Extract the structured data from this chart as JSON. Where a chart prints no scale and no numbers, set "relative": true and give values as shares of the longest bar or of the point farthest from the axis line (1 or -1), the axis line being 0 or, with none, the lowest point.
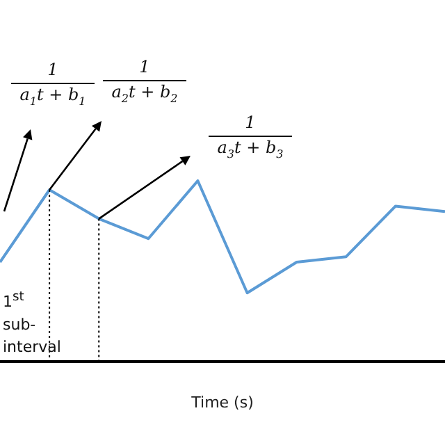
{
  "chart_data": {
    "type": "line",
    "relative": true,
    "xlabel": "Time (s)",
    "categories": [
      null,
      null,
      null,
      null,
      null,
      null,
      null,
      null,
      null,
      null
    ],
    "series": [
      {
        "color": "#5b9bd5",
        "values": [
          0.55,
          0.95,
          0.79,
          0.68,
          1,
          0.38,
          0.55,
          0.58,
          0.86,
          0.83
        ]
      }
    ],
    "marker": "none",
    "grid": false,
    "tick_labels": false,
    "annotations": [
      "1",
      "a$_{1}$t + b$_{1}$",
      "1",
      "a$_{2}$t + b$_{2}$",
      "1",
      "a$_{3}$t + b$_{3}$",
      "1$^{st}$ sub-interval"
    ]
  }
}
